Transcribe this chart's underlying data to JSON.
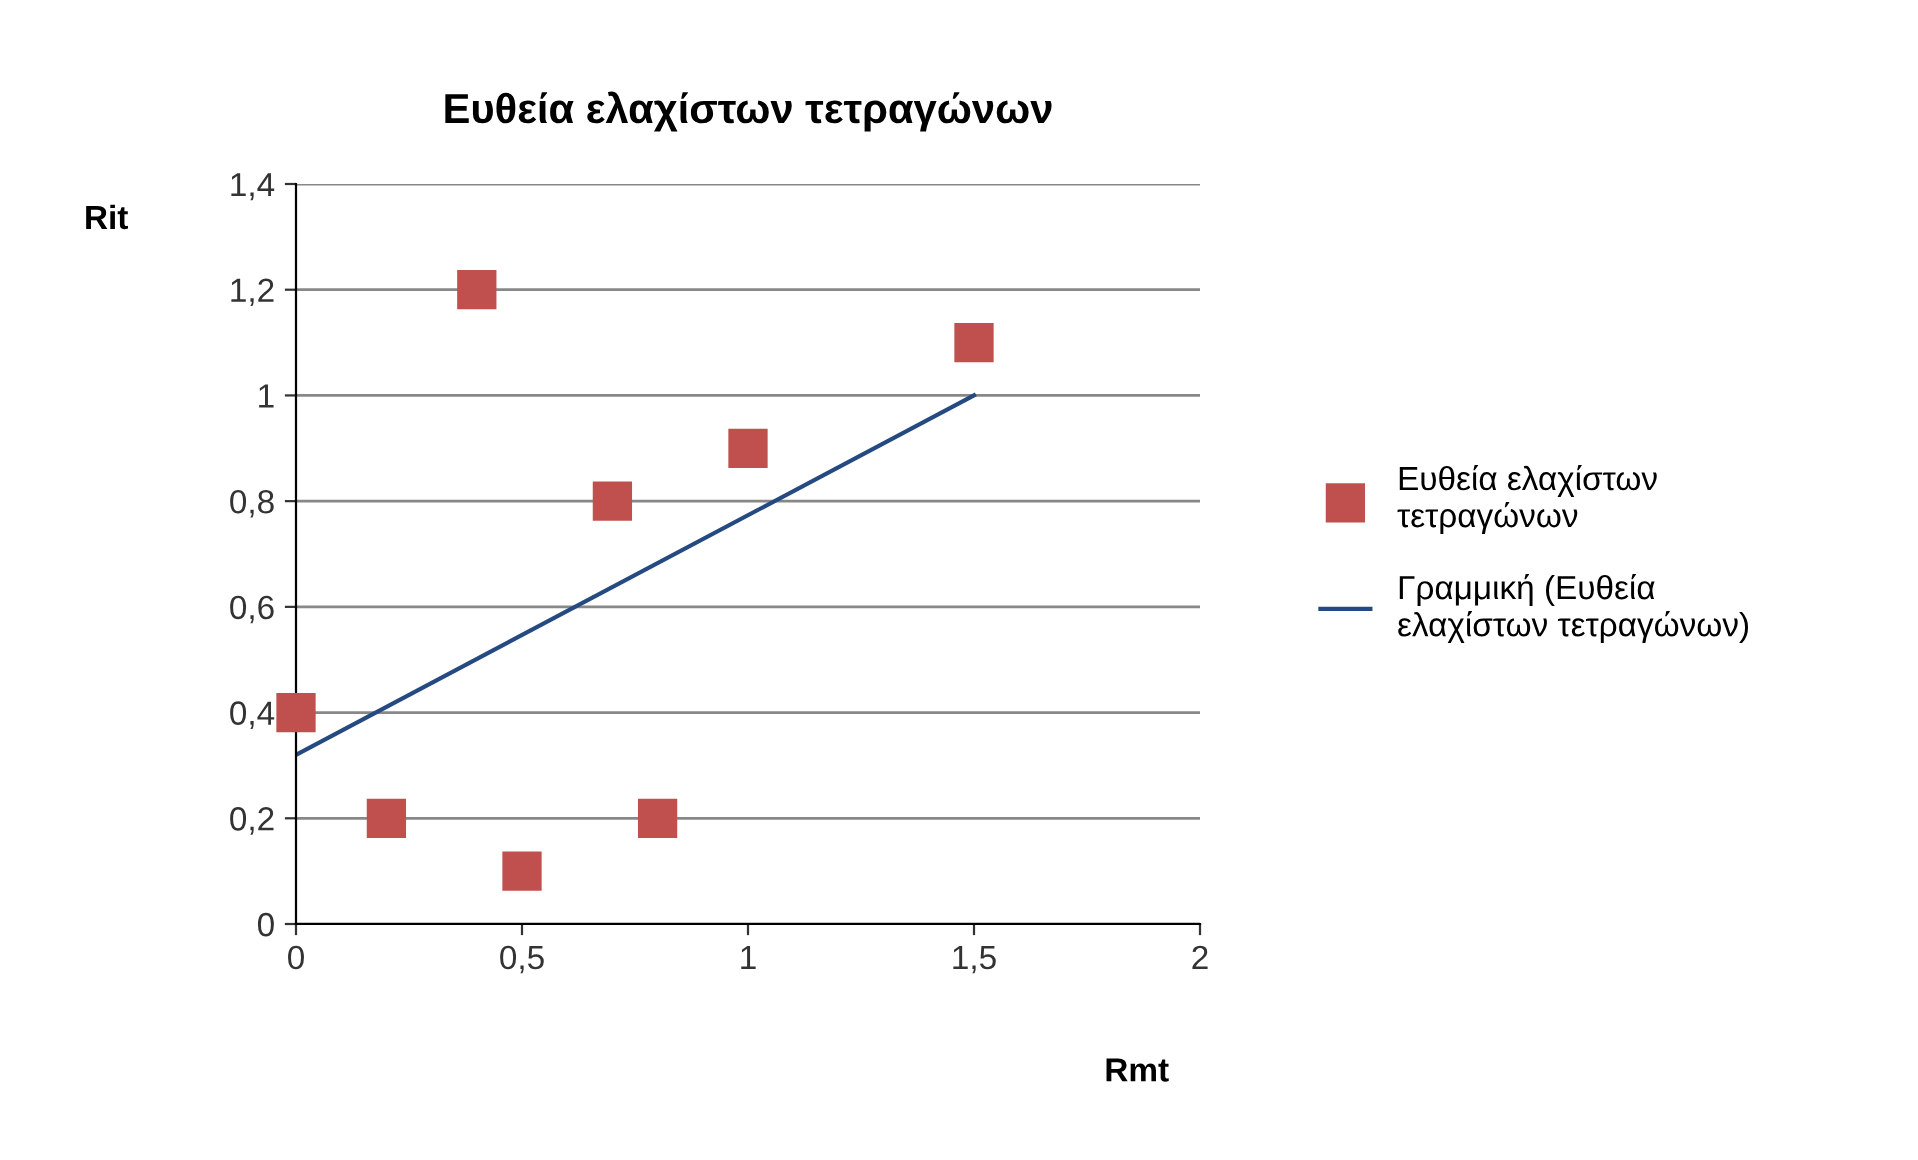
{
  "chart_data": {
    "type": "scatter",
    "title": "Ευθεία ελαχίστων τετραγώνων",
    "xlabel": "Rmt",
    "ylabel": "Rit",
    "series": [
      {
        "name": "Ευθεία ελαχίστων τετραγώνων",
        "color": "#c0504d",
        "marker": "square",
        "x": [
          0,
          0.2,
          0.4,
          0.5,
          0.7,
          0.8,
          1,
          1.5
        ],
        "values": [
          0.4,
          0.2,
          1.2,
          0.1,
          0.8,
          0.2,
          0.9,
          1.1
        ]
      },
      {
        "name": "Γραμμική (Ευθεία ελαχίστων τετραγώνων)",
        "type": "line",
        "color": "#254a82",
        "marker": "none",
        "line_style": "solid",
        "x": [
          0,
          1.5
        ],
        "values": [
          0.32,
          1.0
        ]
      }
    ],
    "xlim": [
      0,
      2
    ],
    "xticks": [
      0,
      {
        "value": 0.5,
        "label": "0,5"
      },
      1,
      {
        "value": 1.5,
        "label": "1,5"
      },
      2
    ],
    "ylim": [
      0,
      1.4
    ],
    "yticks": [
      0,
      {
        "value": 0.2,
        "label": "0,2"
      },
      {
        "value": 0.4,
        "label": "0,4"
      },
      {
        "value": 0.6,
        "label": "0,6"
      },
      {
        "value": 0.8,
        "label": "0,8"
      },
      1,
      {
        "value": 1.2,
        "label": "1,2"
      },
      {
        "value": 1.4,
        "label": "1,4"
      }
    ],
    "grid": "y",
    "legend": "right"
  }
}
